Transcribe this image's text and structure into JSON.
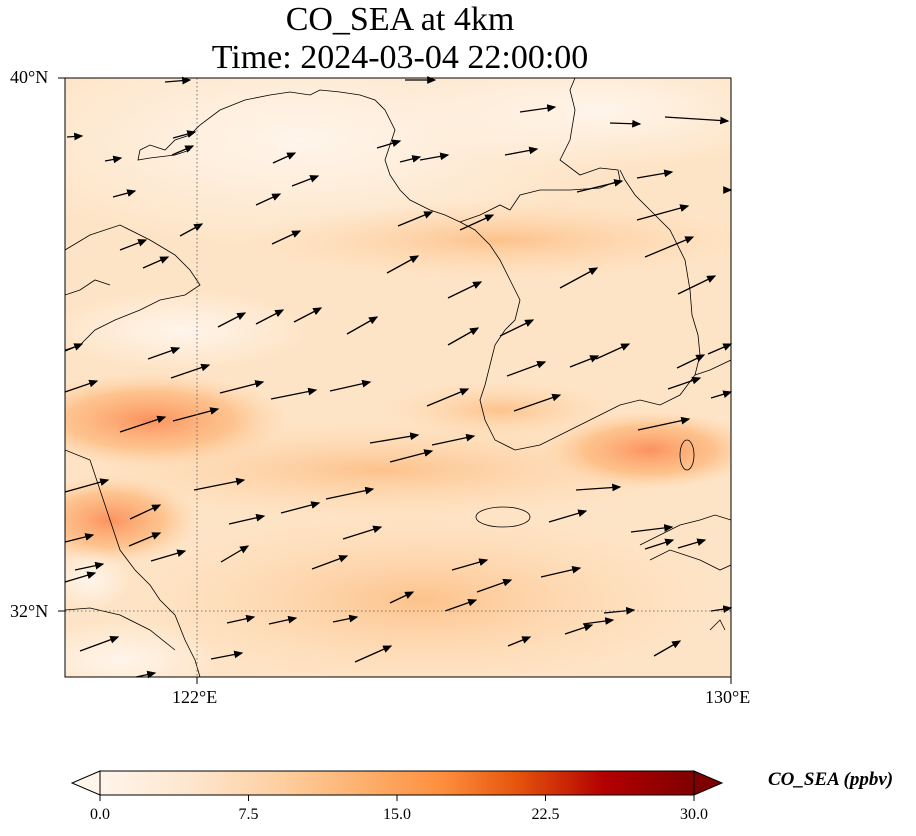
{
  "title": {
    "line1": "CO_SEA at 4km",
    "line2": "Time: 2024-03-04 22:00:00"
  },
  "axes": {
    "lat_labels": [
      "40°N",
      "32°N"
    ],
    "lon_labels": [
      "122°E",
      "130°E"
    ],
    "lat_range": [
      31,
      40
    ],
    "lon_range": [
      120,
      130
    ],
    "gridlines": {
      "lats": [
        32
      ],
      "lons": [
        122
      ],
      "style": "dotted"
    }
  },
  "colorbar": {
    "label": "CO_SEA (ppbv)",
    "ticks": [
      "0.0",
      "7.5",
      "15.0",
      "22.5",
      "30.0"
    ],
    "range": [
      0,
      30
    ],
    "extend": "both",
    "colormap": "Oranges-to-darkred",
    "colors": [
      "#fff5eb",
      "#fee6ce",
      "#fdd0a2",
      "#fdae6b",
      "#fd8d3c",
      "#e6550d",
      "#b30000",
      "#7f0000"
    ]
  },
  "field_summary": {
    "background_level_ppbv": 5,
    "band_max_ppbv": 16,
    "bands": [
      "west-east enhanced band near 35.5°N",
      "enhancement near 33.5°N off east China coast",
      "enhancement near 35°N south of Korea"
    ]
  },
  "wind": {
    "direction": "west-southwest to east-northeast",
    "style": "black arrows"
  }
}
